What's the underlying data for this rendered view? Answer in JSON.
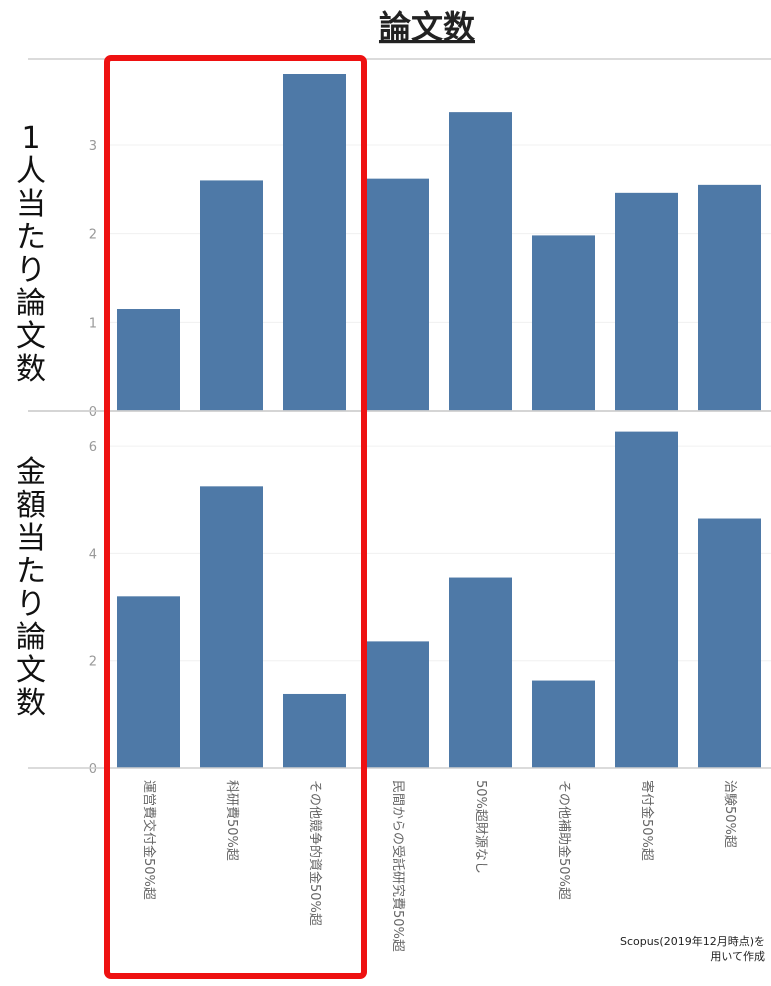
{
  "chart_data": {
    "type": "bar",
    "title": "論文数",
    "categories": [
      "運営費交付金50%超",
      "科研費50%超",
      "その他競争的資金50%超",
      "民間からの受託研究費50%超",
      "50%超財源なし",
      "その他補助金50%超",
      "寄付金50%超",
      "治験50%超"
    ],
    "panels": [
      {
        "ylabel": "1人当たり論文数",
        "ylim": [
          0,
          3.8
        ],
        "yticks": [
          "0",
          "1",
          "2",
          "3"
        ],
        "values": [
          1.15,
          2.6,
          3.8,
          2.62,
          3.37,
          1.98,
          2.46,
          2.55
        ]
      },
      {
        "ylabel": "金額当たり論文数",
        "ylim": [
          0,
          6.3
        ],
        "yticks": [
          "0",
          "2",
          "4",
          "6"
        ],
        "values": [
          3.2,
          5.25,
          1.38,
          2.36,
          3.55,
          1.63,
          6.27,
          4.65
        ]
      }
    ],
    "bar_color": "#4e79a7",
    "highlight": {
      "categories": [
        "運営費交付金50%超",
        "科研費50%超",
        "その他競争的資金50%超"
      ],
      "color": "#ee1111"
    },
    "grid": true,
    "legend": "none"
  },
  "source_note": [
    "Scopus(2019年12月時点)を",
    "用いて作成"
  ]
}
